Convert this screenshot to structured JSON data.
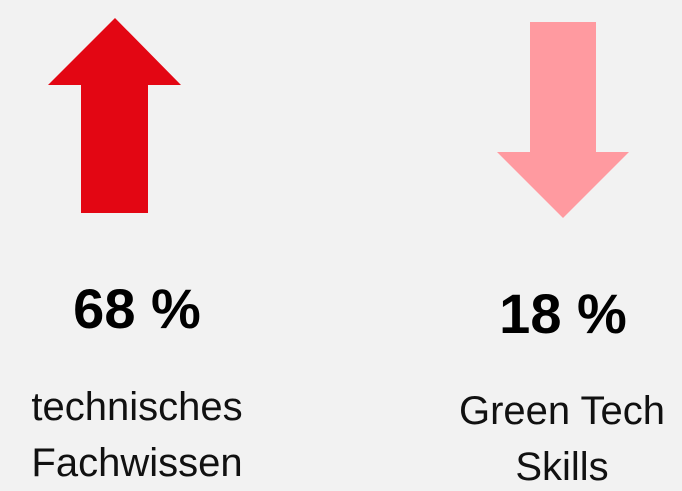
{
  "items": [
    {
      "value": "68 %",
      "label_lines": [
        "technisches",
        "Fachwissen"
      ]
    },
    {
      "value": "18 %",
      "label_lines": [
        "Green Tech",
        "Skills"
      ]
    }
  ]
}
